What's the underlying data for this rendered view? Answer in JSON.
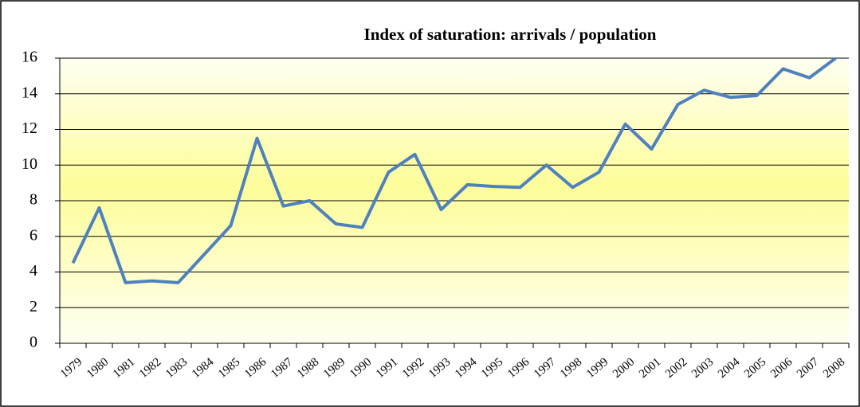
{
  "chart_data": {
    "type": "line",
    "title": "Index of saturation:  arrivals / population",
    "categories": [
      "1979",
      "1980",
      "1981",
      "1982",
      "1983",
      "1984",
      "1985",
      "1986",
      "1987",
      "1988",
      "1989",
      "1990",
      "1991",
      "1992",
      "1993",
      "1994",
      "1995",
      "1996",
      "1997",
      "1998",
      "1999",
      "2000",
      "2001",
      "2002",
      "2003",
      "2004",
      "2005",
      "2006",
      "2007",
      "2008"
    ],
    "values": [
      4.5,
      7.6,
      3.4,
      3.5,
      3.4,
      5.0,
      6.6,
      11.5,
      7.7,
      8.0,
      6.7,
      6.5,
      9.6,
      10.6,
      7.5,
      8.9,
      8.8,
      8.75,
      10.0,
      8.75,
      9.6,
      12.3,
      10.9,
      13.4,
      14.2,
      13.8,
      13.9,
      15.4,
      14.9,
      16.0
    ],
    "color": "#4f81bd",
    "ylim": [
      0,
      16
    ],
    "yticks": [
      0,
      2,
      4,
      6,
      8,
      10,
      12,
      14,
      16
    ],
    "grid": true
  }
}
